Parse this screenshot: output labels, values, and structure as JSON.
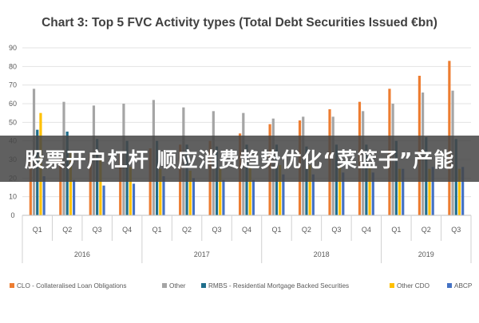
{
  "overlay_caption": "股票开户杠杆 顺应消费趋势优化“菜篮子”产能",
  "chart_data": {
    "type": "bar",
    "title": "Chart 3: Top 5 FVC Activity types (Total Debt Securities Issued €bn)",
    "xlabel": "",
    "ylabel": "",
    "ylim": [
      0,
      90
    ],
    "yticks": [
      0,
      10,
      20,
      30,
      40,
      50,
      60,
      70,
      80,
      90
    ],
    "grid": true,
    "legend_position": "bottom",
    "categories": [
      "Q1",
      "Q2",
      "Q3",
      "Q4",
      "Q1",
      "Q2",
      "Q3",
      "Q4",
      "Q1",
      "Q2",
      "Q3",
      "Q4",
      "Q1",
      "Q2",
      "Q3"
    ],
    "groups": [
      {
        "label": "2016",
        "count": 4
      },
      {
        "label": "2017",
        "count": 4
      },
      {
        "label": "2018",
        "count": 4
      },
      {
        "label": "2019",
        "count": 3
      }
    ],
    "series": [
      {
        "name": "CLO - Collateralised Loan Obligations",
        "color": "#ED7D31",
        "values": [
          30,
          31,
          33,
          34,
          36,
          38,
          40,
          44,
          49,
          51,
          57,
          61,
          68,
          75,
          83
        ]
      },
      {
        "name": "Other",
        "color": "#A5A5A5",
        "values": [
          68,
          61,
          59,
          60,
          62,
          58,
          56,
          55,
          52,
          53,
          53,
          56,
          60,
          66,
          67
        ]
      },
      {
        "name": "RMBS - Residential Mortgage Backed Securities",
        "color": "#1F6E8C",
        "values": [
          46,
          45,
          41,
          40,
          40,
          38,
          37,
          38,
          38,
          37,
          38,
          38,
          40,
          42,
          41
        ]
      },
      {
        "name": "Other CDO",
        "color": "#FFC000",
        "values": [
          55,
          34,
          30,
          26,
          25,
          24,
          25,
          26,
          27,
          27,
          27,
          26,
          25,
          25,
          25
        ]
      },
      {
        "name": "ABCP",
        "color": "#4472C4",
        "values": [
          21,
          19,
          16,
          17,
          21,
          20,
          19,
          19,
          22,
          22,
          23,
          23,
          25,
          26,
          26
        ]
      }
    ]
  }
}
